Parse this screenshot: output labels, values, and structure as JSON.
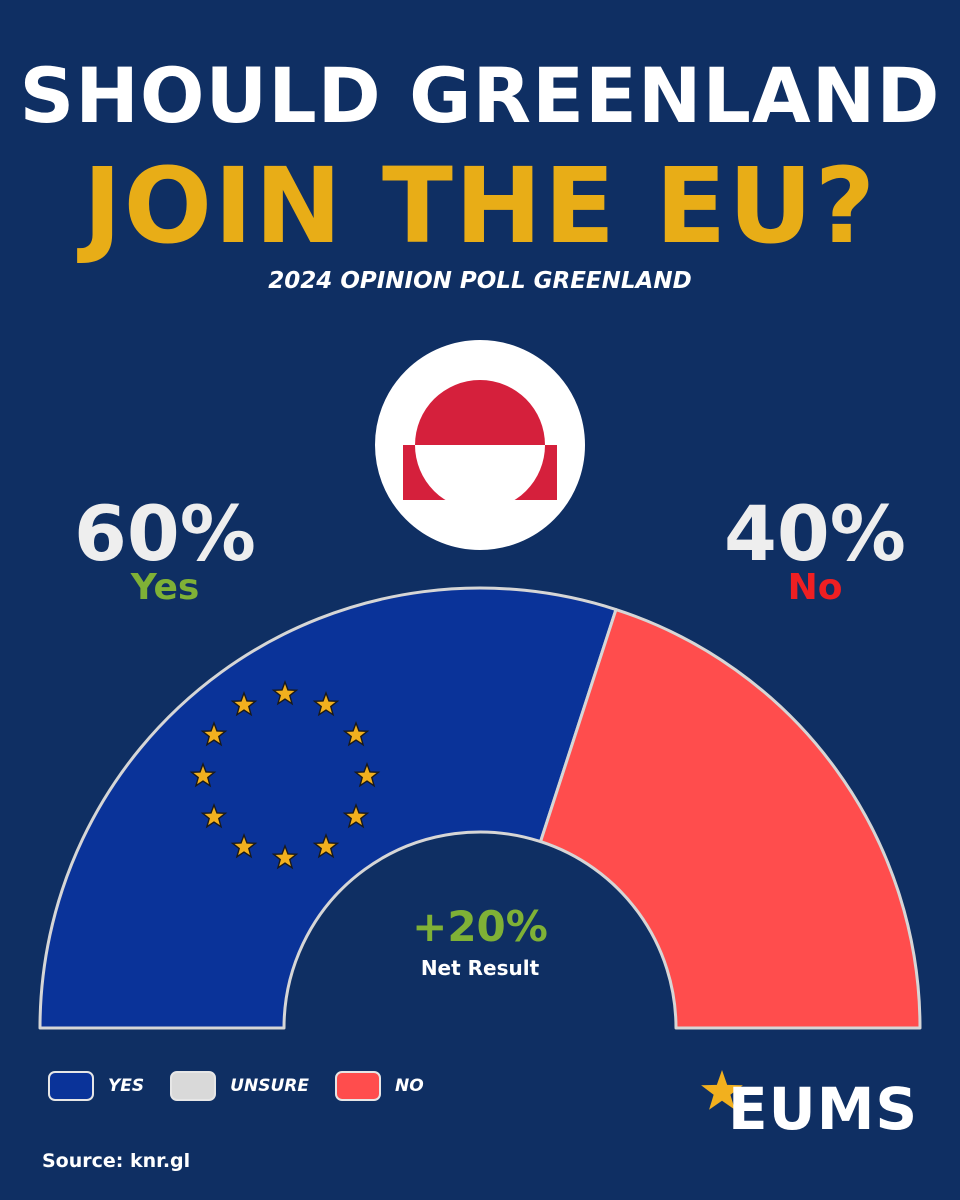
{
  "header": {
    "title_line1": "SHOULD GREENLAND",
    "title_line2": "JOIN THE EU?",
    "subtitle": "2024 OPINION POLL GREENLAND"
  },
  "results": {
    "yes_pct": "60%",
    "yes_label": "Yes",
    "no_pct": "40%",
    "no_label": "No",
    "net_value": "+20%",
    "net_label": "Net Result"
  },
  "legend": {
    "items": [
      {
        "label": "YES",
        "color": "#0a3399"
      },
      {
        "label": "UNSURE",
        "color": "#d9d9d9"
      },
      {
        "label": "NO",
        "color": "#ff4d4d"
      }
    ]
  },
  "footer": {
    "source": "Source: knr.gl",
    "brand": "EUMS"
  },
  "colors": {
    "background": "#0f2f63",
    "title_accent": "#e8ad17",
    "yes_text": "#7fb136",
    "no_text": "#ef1f22",
    "star": "#f2b01e"
  },
  "chart_data": {
    "type": "pie",
    "variant": "semicircle",
    "categories": [
      "Yes",
      "Unsure",
      "No"
    ],
    "values": [
      60,
      0,
      40
    ],
    "colors": [
      "#0a3399",
      "#d9d9d9",
      "#ff4d4d"
    ]
  }
}
